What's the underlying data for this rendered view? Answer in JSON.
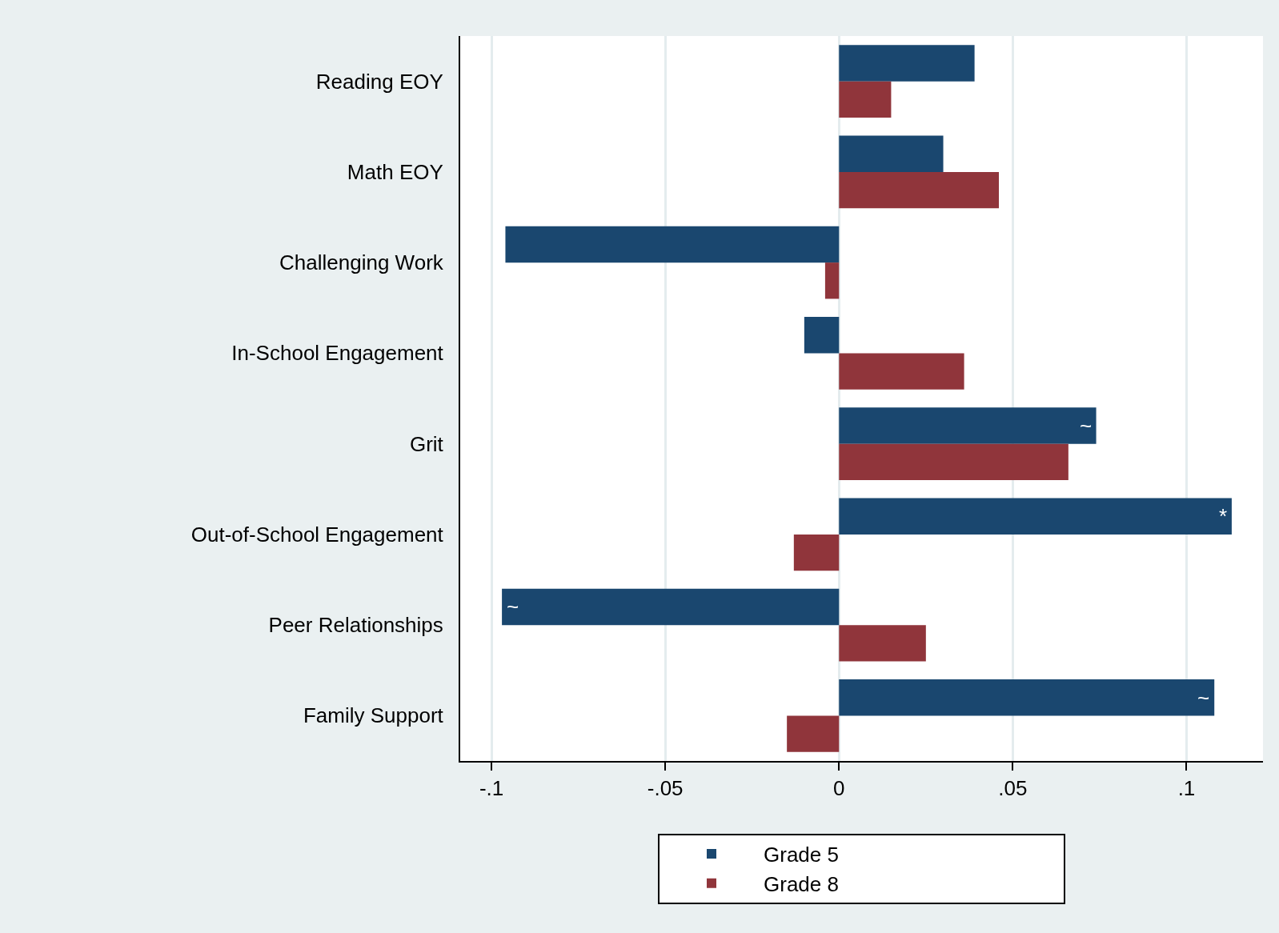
{
  "chart_data": {
    "type": "bar",
    "orientation": "horizontal",
    "categories": [
      "Reading EOY",
      "Math EOY",
      "Challenging Work",
      "In-School Engagement",
      "Grit",
      "Out-of-School Engagement",
      "Peer Relationships",
      "Family Support"
    ],
    "series": [
      {
        "name": "Grade 5",
        "color": "#1a476f",
        "values": [
          0.039,
          0.03,
          -0.096,
          -0.01,
          0.074,
          0.113,
          -0.097,
          0.108
        ]
      },
      {
        "name": "Grade 8",
        "color": "#90353b",
        "values": [
          0.015,
          0.046,
          -0.004,
          0.036,
          0.066,
          -0.013,
          0.025,
          -0.015
        ]
      }
    ],
    "xlim": [
      -0.109,
      0.122
    ],
    "xticks": [
      {
        "value": -0.1,
        "label": "-.1"
      },
      {
        "value": -0.05,
        "label": "-.05"
      },
      0,
      {
        "value": 0.05,
        "label": ".05"
      },
      {
        "value": 0.1,
        "label": ".1"
      }
    ],
    "grid": "x",
    "legend": "bottom",
    "annotations": [
      {
        "text": "~",
        "x": 0.074,
        "y": "Grit"
      },
      {
        "text": "*",
        "x": 0.113,
        "y": "Out-of-School Engagement"
      },
      {
        "text": "~",
        "x": -0.097,
        "y": "Peer Relationships"
      },
      {
        "text": "~",
        "x": 0.108,
        "y": "Family Support"
      }
    ]
  }
}
